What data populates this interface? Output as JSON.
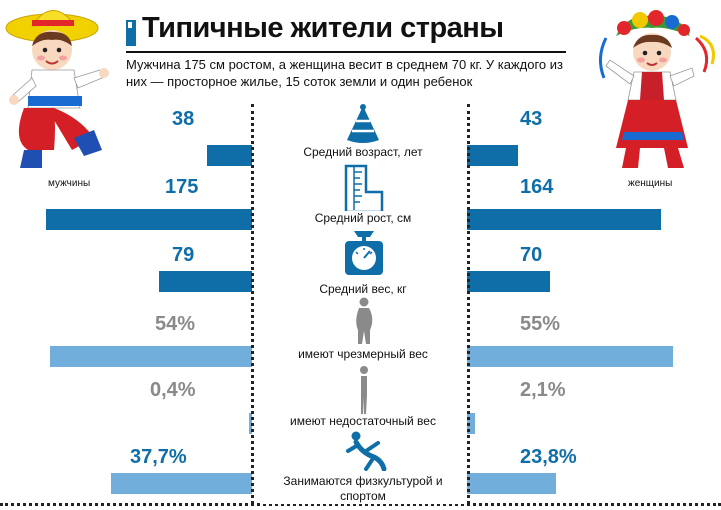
{
  "header": {
    "title": "Типичные жители страны",
    "subtitle": "Мужчина 175 см ростом, а женщина весит в среднем 70 кг. У каждого из них — просторное жилье, 15 соток земли и один ребенок"
  },
  "labels": {
    "men": "мужчины",
    "women": "женщины"
  },
  "colors": {
    "dark": "#0f6ea8",
    "light": "#72aedb",
    "grey_text": "#8a8a8a"
  },
  "chart_data": {
    "type": "bar",
    "orientation": "butterfly",
    "categories": [
      "Средний возраст, лет",
      "Средний рост, см",
      "Средний вес, кг",
      "имеют чрезмерный вес",
      "имеют недостаточный вес",
      "Занимаются физкультурой и спортом"
    ],
    "men_labels": [
      "38",
      "175",
      "79",
      "54%",
      "0,4%",
      "37,7%"
    ],
    "women_labels": [
      "43",
      "164",
      "70",
      "55%",
      "2,1%",
      "23,8%"
    ],
    "men_values": [
      38,
      175,
      79,
      54,
      0.4,
      37.7
    ],
    "women_values": [
      43,
      164,
      70,
      55,
      2.1,
      23.8
    ],
    "row_style": [
      "dark",
      "dark",
      "dark",
      "light",
      "light",
      "light"
    ],
    "icons": [
      "party-hat-icon",
      "ruler-icon",
      "scale-icon",
      "overweight-person-icon",
      "thin-person-icon",
      "exercise-person-icon"
    ]
  }
}
